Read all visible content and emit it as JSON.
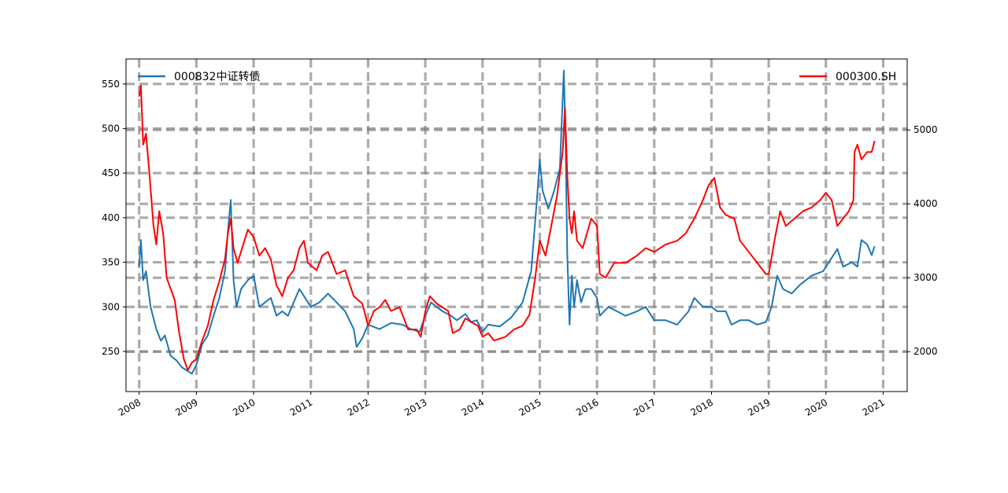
{
  "chart_data": {
    "type": "line",
    "title": "",
    "xlabel": "",
    "grid": "on (dashed gray)",
    "x_tick_labels": [
      "2008",
      "2009",
      "2010",
      "2011",
      "2012",
      "2013",
      "2014",
      "2015",
      "2016",
      "2017",
      "2018",
      "2019",
      "2020",
      "2021"
    ],
    "xlim": [
      2007.77,
      2021.42
    ],
    "y_left": {
      "ylim": [
        205,
        578
      ],
      "tick_labels": [
        "250",
        "300",
        "350",
        "400",
        "450",
        "500",
        "550"
      ]
    },
    "y_right": {
      "ylim": [
        1460,
        5960
      ],
      "tick_labels": [
        "2000",
        "3000",
        "4000",
        "5000"
      ]
    },
    "legend_left": {
      "placement": "upper-left",
      "label": "000832中证转债"
    },
    "legend_right": {
      "placement": "upper-right",
      "label": "000300.SH"
    },
    "series": [
      {
        "name": "000832中证转债",
        "axis": "left",
        "color": "#1f77b4",
        "points": [
          [
            2008.0,
            345
          ],
          [
            2008.03,
            375
          ],
          [
            2008.07,
            330
          ],
          [
            2008.12,
            340
          ],
          [
            2008.2,
            300
          ],
          [
            2008.3,
            275
          ],
          [
            2008.38,
            262
          ],
          [
            2008.45,
            268
          ],
          [
            2008.55,
            245
          ],
          [
            2008.65,
            240
          ],
          [
            2008.75,
            232
          ],
          [
            2008.85,
            228
          ],
          [
            2008.92,
            225
          ],
          [
            2009.0,
            235
          ],
          [
            2009.1,
            258
          ],
          [
            2009.2,
            268
          ],
          [
            2009.3,
            290
          ],
          [
            2009.4,
            310
          ],
          [
            2009.5,
            340
          ],
          [
            2009.55,
            385
          ],
          [
            2009.6,
            420
          ],
          [
            2009.65,
            330
          ],
          [
            2009.7,
            300
          ],
          [
            2009.78,
            320
          ],
          [
            2009.9,
            330
          ],
          [
            2010.0,
            335
          ],
          [
            2010.1,
            300
          ],
          [
            2010.2,
            305
          ],
          [
            2010.3,
            310
          ],
          [
            2010.4,
            290
          ],
          [
            2010.5,
            295
          ],
          [
            2010.6,
            290
          ],
          [
            2010.7,
            305
          ],
          [
            2010.8,
            320
          ],
          [
            2010.9,
            310
          ],
          [
            2011.0,
            300
          ],
          [
            2011.15,
            305
          ],
          [
            2011.3,
            315
          ],
          [
            2011.45,
            305
          ],
          [
            2011.6,
            295
          ],
          [
            2011.75,
            275
          ],
          [
            2011.8,
            255
          ],
          [
            2011.9,
            265
          ],
          [
            2012.0,
            280
          ],
          [
            2012.2,
            275
          ],
          [
            2012.4,
            282
          ],
          [
            2012.6,
            280
          ],
          [
            2012.75,
            275
          ],
          [
            2012.9,
            272
          ],
          [
            2013.0,
            290
          ],
          [
            2013.1,
            305
          ],
          [
            2013.2,
            300
          ],
          [
            2013.3,
            295
          ],
          [
            2013.45,
            290
          ],
          [
            2013.55,
            285
          ],
          [
            2013.7,
            292
          ],
          [
            2013.8,
            283
          ],
          [
            2013.9,
            285
          ],
          [
            2014.0,
            272
          ],
          [
            2014.1,
            280
          ],
          [
            2014.3,
            278
          ],
          [
            2014.5,
            288
          ],
          [
            2014.7,
            305
          ],
          [
            2014.85,
            340
          ],
          [
            2014.95,
            420
          ],
          [
            2015.0,
            465
          ],
          [
            2015.05,
            430
          ],
          [
            2015.15,
            410
          ],
          [
            2015.25,
            430
          ],
          [
            2015.35,
            455
          ],
          [
            2015.42,
            565
          ],
          [
            2015.45,
            490
          ],
          [
            2015.48,
            360
          ],
          [
            2015.52,
            280
          ],
          [
            2015.56,
            335
          ],
          [
            2015.6,
            300
          ],
          [
            2015.65,
            330
          ],
          [
            2015.72,
            305
          ],
          [
            2015.8,
            320
          ],
          [
            2015.9,
            320
          ],
          [
            2016.0,
            310
          ],
          [
            2016.05,
            290
          ],
          [
            2016.2,
            300
          ],
          [
            2016.35,
            295
          ],
          [
            2016.5,
            290
          ],
          [
            2016.7,
            295
          ],
          [
            2016.85,
            300
          ],
          [
            2017.0,
            285
          ],
          [
            2017.2,
            285
          ],
          [
            2017.4,
            280
          ],
          [
            2017.6,
            295
          ],
          [
            2017.7,
            310
          ],
          [
            2017.85,
            300
          ],
          [
            2018.0,
            300
          ],
          [
            2018.1,
            295
          ],
          [
            2018.25,
            295
          ],
          [
            2018.35,
            280
          ],
          [
            2018.5,
            285
          ],
          [
            2018.65,
            285
          ],
          [
            2018.8,
            280
          ],
          [
            2018.95,
            283
          ],
          [
            2019.05,
            300
          ],
          [
            2019.15,
            335
          ],
          [
            2019.25,
            320
          ],
          [
            2019.4,
            315
          ],
          [
            2019.55,
            325
          ],
          [
            2019.75,
            335
          ],
          [
            2019.95,
            340
          ],
          [
            2020.1,
            355
          ],
          [
            2020.2,
            365
          ],
          [
            2020.3,
            345
          ],
          [
            2020.45,
            350
          ],
          [
            2020.55,
            345
          ],
          [
            2020.62,
            375
          ],
          [
            2020.72,
            370
          ],
          [
            2020.8,
            358
          ],
          [
            2020.85,
            368
          ]
        ]
      },
      {
        "name": "000300.SH",
        "axis": "right",
        "color": "#ff0000",
        "points": [
          [
            2008.0,
            5450
          ],
          [
            2008.03,
            5600
          ],
          [
            2008.07,
            4800
          ],
          [
            2008.12,
            4950
          ],
          [
            2008.18,
            4400
          ],
          [
            2008.25,
            3700
          ],
          [
            2008.3,
            3450
          ],
          [
            2008.35,
            3900
          ],
          [
            2008.42,
            3600
          ],
          [
            2008.48,
            3000
          ],
          [
            2008.55,
            2850
          ],
          [
            2008.62,
            2700
          ],
          [
            2008.7,
            2250
          ],
          [
            2008.78,
            1900
          ],
          [
            2008.85,
            1750
          ],
          [
            2008.92,
            1850
          ],
          [
            2009.0,
            1900
          ],
          [
            2009.1,
            2150
          ],
          [
            2009.2,
            2350
          ],
          [
            2009.3,
            2700
          ],
          [
            2009.4,
            2950
          ],
          [
            2009.5,
            3250
          ],
          [
            2009.55,
            3600
          ],
          [
            2009.6,
            3800
          ],
          [
            2009.65,
            3400
          ],
          [
            2009.72,
            3200
          ],
          [
            2009.8,
            3400
          ],
          [
            2009.9,
            3650
          ],
          [
            2010.0,
            3550
          ],
          [
            2010.1,
            3300
          ],
          [
            2010.2,
            3400
          ],
          [
            2010.3,
            3250
          ],
          [
            2010.4,
            2900
          ],
          [
            2010.5,
            2750
          ],
          [
            2010.6,
            3000
          ],
          [
            2010.7,
            3100
          ],
          [
            2010.8,
            3400
          ],
          [
            2010.88,
            3500
          ],
          [
            2010.95,
            3200
          ],
          [
            2011.1,
            3100
          ],
          [
            2011.2,
            3300
          ],
          [
            2011.3,
            3350
          ],
          [
            2011.45,
            3050
          ],
          [
            2011.6,
            3100
          ],
          [
            2011.75,
            2750
          ],
          [
            2011.9,
            2650
          ],
          [
            2012.0,
            2350
          ],
          [
            2012.1,
            2550
          ],
          [
            2012.2,
            2600
          ],
          [
            2012.3,
            2700
          ],
          [
            2012.4,
            2550
          ],
          [
            2012.55,
            2600
          ],
          [
            2012.7,
            2300
          ],
          [
            2012.85,
            2300
          ],
          [
            2012.92,
            2200
          ],
          [
            2013.0,
            2550
          ],
          [
            2013.08,
            2750
          ],
          [
            2013.2,
            2650
          ],
          [
            2013.3,
            2600
          ],
          [
            2013.4,
            2550
          ],
          [
            2013.48,
            2250
          ],
          [
            2013.6,
            2300
          ],
          [
            2013.7,
            2450
          ],
          [
            2013.8,
            2400
          ],
          [
            2013.92,
            2350
          ],
          [
            2014.0,
            2200
          ],
          [
            2014.1,
            2250
          ],
          [
            2014.2,
            2150
          ],
          [
            2014.4,
            2200
          ],
          [
            2014.55,
            2300
          ],
          [
            2014.7,
            2350
          ],
          [
            2014.82,
            2500
          ],
          [
            2014.92,
            3000
          ],
          [
            2015.0,
            3500
          ],
          [
            2015.1,
            3300
          ],
          [
            2015.2,
            3700
          ],
          [
            2015.3,
            4100
          ],
          [
            2015.4,
            4700
          ],
          [
            2015.44,
            5300
          ],
          [
            2015.48,
            4400
          ],
          [
            2015.52,
            3800
          ],
          [
            2015.56,
            3600
          ],
          [
            2015.6,
            3900
          ],
          [
            2015.65,
            3500
          ],
          [
            2015.75,
            3400
          ],
          [
            2015.9,
            3800
          ],
          [
            2016.0,
            3700
          ],
          [
            2016.05,
            3050
          ],
          [
            2016.15,
            3000
          ],
          [
            2016.3,
            3200
          ],
          [
            2016.5,
            3200
          ],
          [
            2016.7,
            3300
          ],
          [
            2016.85,
            3400
          ],
          [
            2017.0,
            3350
          ],
          [
            2017.2,
            3450
          ],
          [
            2017.4,
            3500
          ],
          [
            2017.55,
            3600
          ],
          [
            2017.7,
            3800
          ],
          [
            2017.85,
            4050
          ],
          [
            2017.95,
            4250
          ],
          [
            2018.05,
            4350
          ],
          [
            2018.15,
            3950
          ],
          [
            2018.25,
            3850
          ],
          [
            2018.4,
            3800
          ],
          [
            2018.5,
            3500
          ],
          [
            2018.65,
            3350
          ],
          [
            2018.8,
            3200
          ],
          [
            2018.95,
            3050
          ],
          [
            2019.0,
            3050
          ],
          [
            2019.1,
            3500
          ],
          [
            2019.2,
            3900
          ],
          [
            2019.3,
            3700
          ],
          [
            2019.45,
            3800
          ],
          [
            2019.6,
            3900
          ],
          [
            2019.75,
            3950
          ],
          [
            2019.9,
            4050
          ],
          [
            2020.0,
            4150
          ],
          [
            2020.1,
            4050
          ],
          [
            2020.2,
            3700
          ],
          [
            2020.3,
            3800
          ],
          [
            2020.4,
            3900
          ],
          [
            2020.48,
            4050
          ],
          [
            2020.5,
            4700
          ],
          [
            2020.55,
            4800
          ],
          [
            2020.62,
            4600
          ],
          [
            2020.72,
            4700
          ],
          [
            2020.8,
            4700
          ],
          [
            2020.85,
            4850
          ]
        ]
      }
    ]
  }
}
